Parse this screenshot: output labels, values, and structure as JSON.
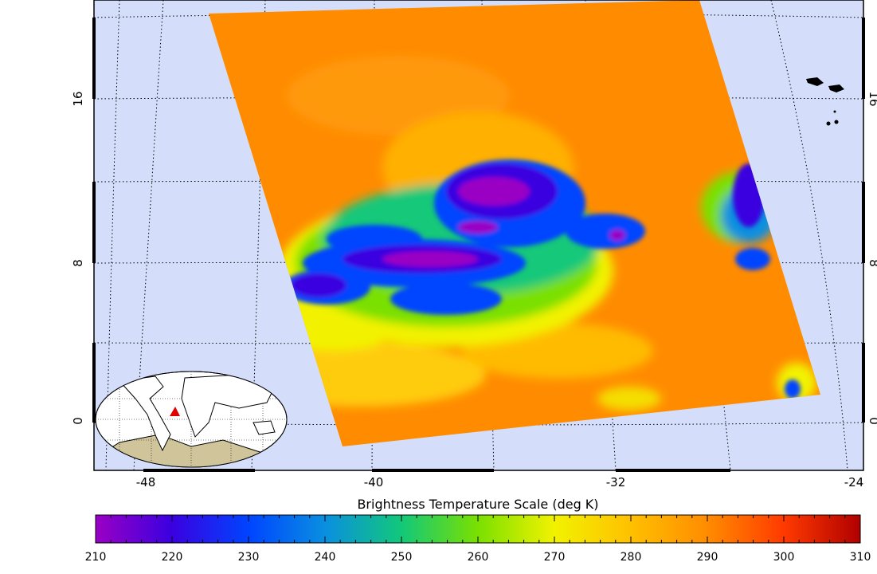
{
  "map": {
    "lon_labels": [
      "-48",
      "-40",
      "-32",
      "-24"
    ],
    "lat_labels": [
      "0",
      "8",
      "16"
    ],
    "background_color": "#d4defa",
    "grid": "dotted"
  },
  "colorbar": {
    "title": "Brightness Temperature Scale (deg K)",
    "ticks": [
      "210",
      "220",
      "230",
      "240",
      "250",
      "260",
      "270",
      "280",
      "290",
      "300",
      "310"
    ],
    "colors": [
      "#9a00c4",
      "#3a00e0",
      "#0044ff",
      "#0a8fe0",
      "#12c87a",
      "#7ae000",
      "#f2f200",
      "#ffc000",
      "#ff8c00",
      "#ff3a00",
      "#b00000"
    ]
  },
  "inset": {
    "marker_color": "#e00000",
    "land_color": "#ffffff",
    "antarctic_color": "#d0c59a"
  }
}
